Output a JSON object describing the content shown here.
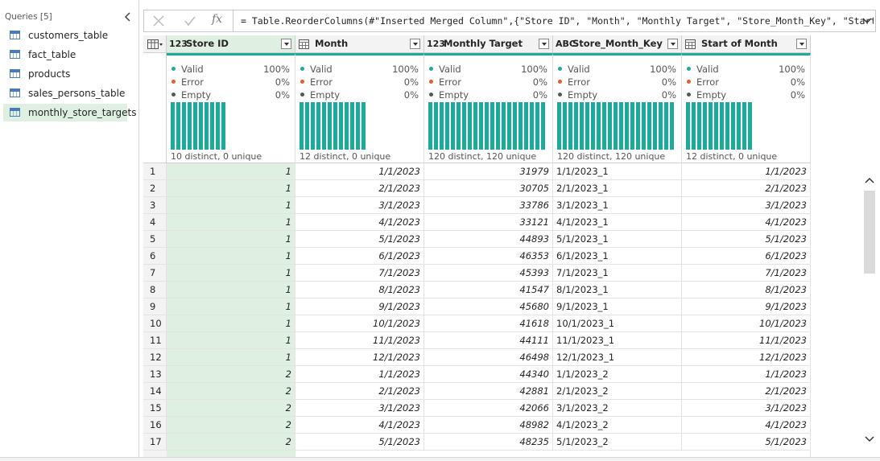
{
  "queries": {
    "title": "Queries [5]",
    "items": [
      "customers_table",
      "fact_table",
      "products",
      "sales_persons_table",
      "monthly_store_targets"
    ]
  },
  "formula_bar": {
    "fx_label": "fx",
    "formula": "= Table.ReorderColumns(#\"Inserted Merged Column\",{\"Store ID\", \"Month\", \"Monthly Target\", \"Store_Month_Key\", \"Start"
  },
  "table": {
    "columns": [
      {
        "name": "Store ID",
        "type": "number",
        "icon": "123",
        "valid": "100%",
        "error": "0%",
        "empty": "0%",
        "distinct": "10 distinct, 0 unique"
      },
      {
        "name": "Month",
        "type": "date",
        "valid": "100%",
        "error": "0%",
        "empty": "0%",
        "distinct": "12 distinct, 0 unique"
      },
      {
        "name": "Monthly Target",
        "type": "number",
        "icon": "123",
        "valid": "100%",
        "error": "0%",
        "empty": "0%",
        "distinct": "120 distinct, 120 unique"
      },
      {
        "name": "Store_Month_Key",
        "type": "text",
        "icon": "ABC",
        "valid": "100%",
        "error": "0%",
        "empty": "0%",
        "distinct": "120 distinct, 120 unique"
      },
      {
        "name": "Start of Month",
        "type": "date",
        "valid": "100%",
        "error": "0%",
        "empty": "0%",
        "distinct": "12 distinct, 0 unique"
      }
    ],
    "quality_labels": [
      "Valid",
      "Error",
      "Empty"
    ],
    "rows": [
      [
        1,
        1,
        "1/1/2023",
        31979,
        "1/1/2023_1",
        "1/1/2023"
      ],
      [
        2,
        1,
        "2/1/2023",
        30705,
        "2/1/2023_1",
        "2/1/2023"
      ],
      [
        3,
        1,
        "3/1/2023",
        33786,
        "3/1/2023_1",
        "3/1/2023"
      ],
      [
        4,
        1,
        "4/1/2023",
        33121,
        "4/1/2023_1",
        "4/1/2023"
      ],
      [
        5,
        1,
        "5/1/2023",
        44893,
        "5/1/2023_1",
        "5/1/2023"
      ],
      [
        6,
        1,
        "6/1/2023",
        46353,
        "6/1/2023_1",
        "6/1/2023"
      ],
      [
        7,
        1,
        "7/1/2023",
        45393,
        "7/1/2023_1",
        "7/1/2023"
      ],
      [
        8,
        1,
        "8/1/2023",
        41547,
        "8/1/2023_1",
        "8/1/2023"
      ],
      [
        9,
        1,
        "9/1/2023",
        45680,
        "9/1/2023_1",
        "9/1/2023"
      ],
      [
        10,
        1,
        "10/1/2023",
        41618,
        "10/1/2023_1",
        "10/1/2023"
      ],
      [
        11,
        1,
        "11/1/2023",
        44111,
        "11/1/2023_1",
        "11/1/2023"
      ],
      [
        12,
        1,
        "12/1/2023",
        46498,
        "12/1/2023_1",
        "12/1/2023"
      ],
      [
        13,
        2,
        "1/1/2023",
        44340,
        "1/1/2023_2",
        "1/1/2023"
      ],
      [
        14,
        2,
        "2/1/2023",
        42881,
        "2/1/2023_2",
        "2/1/2023"
      ],
      [
        15,
        2,
        "3/1/2023",
        42066,
        "3/1/2023_2",
        "3/1/2023"
      ],
      [
        16,
        2,
        "4/1/2023",
        48982,
        "4/1/2023_2",
        "4/1/2023"
      ],
      [
        17,
        2,
        "5/1/2023",
        48235,
        "5/1/2023_2",
        "5/1/2023"
      ]
    ]
  }
}
